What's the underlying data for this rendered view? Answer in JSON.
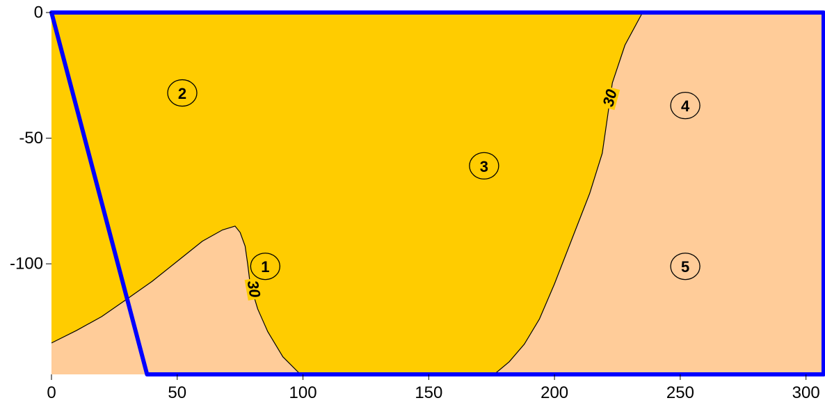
{
  "chart_data": {
    "type": "filled-contour",
    "xlim": [
      0,
      307
    ],
    "ylim": [
      -144,
      0
    ],
    "x_ticks": [
      0,
      50,
      100,
      150,
      200,
      250,
      300
    ],
    "y_ticks": [
      0,
      -50,
      -100
    ],
    "colors": {
      "high_region": "#FFCC00",
      "low_region": "#FFCC99",
      "boundary": "#0000FF",
      "contour": "#000000"
    },
    "contour_level": "30",
    "regions": [
      {
        "name": "low-left",
        "color": "low_region",
        "points": [
          [
            0,
            -131.5
          ],
          [
            10,
            -126.5
          ],
          [
            20,
            -121
          ],
          [
            30,
            -114
          ],
          [
            40,
            -107
          ],
          [
            50,
            -99
          ],
          [
            60,
            -91
          ],
          [
            68,
            -86.5
          ],
          [
            73,
            -85
          ],
          [
            75,
            -87.5
          ],
          [
            77,
            -93
          ],
          [
            78,
            -100
          ],
          [
            79,
            -108
          ],
          [
            82,
            -118
          ],
          [
            86,
            -127
          ],
          [
            92,
            -137
          ],
          [
            99,
            -144
          ],
          [
            0,
            -144
          ]
        ]
      },
      {
        "name": "low-right",
        "color": "low_region",
        "points": [
          [
            235,
            0
          ],
          [
            228,
            -13
          ],
          [
            223,
            -28
          ],
          [
            221,
            -42
          ],
          [
            219,
            -56
          ],
          [
            214,
            -72
          ],
          [
            207,
            -90
          ],
          [
            200,
            -108
          ],
          [
            194,
            -122
          ],
          [
            188,
            -132
          ],
          [
            182,
            -139
          ],
          [
            176,
            -144
          ],
          [
            307,
            -144
          ],
          [
            307,
            0
          ]
        ]
      }
    ],
    "contour_lines": [
      {
        "name": "contour-left",
        "points": [
          [
            0,
            -131.5
          ],
          [
            10,
            -126.5
          ],
          [
            20,
            -121
          ],
          [
            30,
            -114
          ],
          [
            40,
            -107
          ],
          [
            50,
            -99
          ],
          [
            60,
            -91
          ],
          [
            68,
            -86.5
          ],
          [
            73,
            -85
          ],
          [
            75,
            -87.5
          ],
          [
            77,
            -93
          ],
          [
            78,
            -100
          ],
          [
            79,
            -108
          ],
          [
            82,
            -118
          ],
          [
            86,
            -127
          ],
          [
            92,
            -137
          ],
          [
            99,
            -144
          ]
        ]
      },
      {
        "name": "contour-right",
        "points": [
          [
            235,
            0
          ],
          [
            228,
            -13
          ],
          [
            223,
            -28
          ],
          [
            221,
            -42
          ],
          [
            219,
            -56
          ],
          [
            214,
            -72
          ],
          [
            207,
            -90
          ],
          [
            200,
            -108
          ],
          [
            194,
            -122
          ],
          [
            188,
            -132
          ],
          [
            182,
            -139
          ],
          [
            176,
            -144
          ]
        ]
      }
    ],
    "contour_labels": [
      {
        "text": "30",
        "x": 80.5,
        "y": -110,
        "rotation": 80
      },
      {
        "text": "30",
        "x": 222,
        "y": -34,
        "rotation": -75
      }
    ],
    "boundary_polygon": [
      [
        0,
        0
      ],
      [
        307,
        0
      ],
      [
        307,
        -144
      ],
      [
        38,
        -144
      ],
      [
        0,
        0
      ]
    ],
    "zones": [
      {
        "label": "1",
        "x": 85,
        "y": -101
      },
      {
        "label": "2",
        "x": 52,
        "y": -32
      },
      {
        "label": "3",
        "x": 172,
        "y": -61
      },
      {
        "label": "4",
        "x": 252,
        "y": -37
      },
      {
        "label": "5",
        "x": 252,
        "y": -101
      }
    ]
  }
}
